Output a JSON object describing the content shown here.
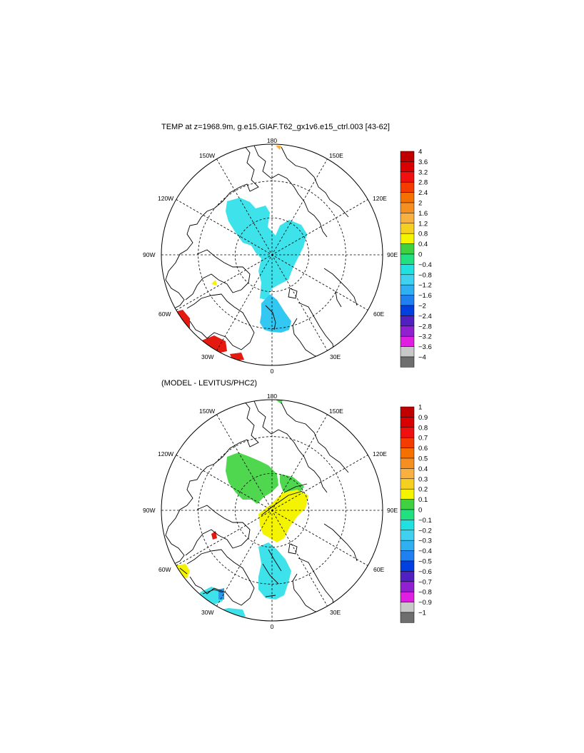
{
  "panels": [
    {
      "title": "TEMP at z=1968.9m, g.e15.GIAF.T62_gx1v6.e15_ctrl.003 [43-62]",
      "lon_labels": {
        "top": "180",
        "bottom": "0",
        "left": "90W",
        "right": "90E",
        "ul1": "150W",
        "ul2": "120W",
        "ur1": "150E",
        "ur2": "120E",
        "ll1": "60W",
        "ll2": "30W",
        "lr1": "60E",
        "lr2": "30E"
      },
      "colorbar": {
        "labels": [
          "4",
          "3.6",
          "3.2",
          "2.8",
          "2.4",
          "2",
          "1.6",
          "1.2",
          "0.8",
          "0.4",
          "0",
          "−0.4",
          "−0.8",
          "−1.2",
          "−1.6",
          "−2",
          "−2.4",
          "−2.8",
          "−3.2",
          "−3.6",
          "−4"
        ],
        "colors": [
          "#c00000",
          "#d80000",
          "#f01010",
          "#f43c00",
          "#f47000",
          "#f58f20",
          "#f8b040",
          "#f6d020",
          "#f4f400",
          "#40d040",
          "#20e080",
          "#20e0e0",
          "#40d0f0",
          "#30b0f0",
          "#2080f0",
          "#0040e0",
          "#5020c0",
          "#9020d0",
          "#e020e0",
          "#c8c8c8",
          "#6e6e6e"
        ]
      }
    },
    {
      "title": "(MODEL - LEVITUS/PHC2)",
      "lon_labels": {
        "top": "180",
        "bottom": "0",
        "left": "90W",
        "right": "90E",
        "ul1": "150W",
        "ul2": "120W",
        "ur1": "150E",
        "ur2": "120E",
        "ll1": "60W",
        "ll2": "30W",
        "lr1": "60E",
        "lr2": "30E"
      },
      "colorbar": {
        "labels": [
          "1",
          "0.9",
          "0.8",
          "0.7",
          "0.6",
          "0.5",
          "0.4",
          "0.3",
          "0.2",
          "0.1",
          "0",
          "−0.1",
          "−0.2",
          "−0.3",
          "−0.4",
          "−0.5",
          "−0.6",
          "−0.7",
          "−0.8",
          "−0.9",
          "−1"
        ],
        "colors": [
          "#c00000",
          "#d80000",
          "#f01010",
          "#f43c00",
          "#f47000",
          "#f58f20",
          "#f8b040",
          "#f6d020",
          "#f4f400",
          "#40d040",
          "#20e080",
          "#20e0e0",
          "#40d0f0",
          "#30b0f0",
          "#2080f0",
          "#0040e0",
          "#5020c0",
          "#9020d0",
          "#e020e0",
          "#c8c8c8",
          "#6e6e6e"
        ]
      }
    }
  ],
  "fields": {
    "cyan": "#3ee2ea",
    "light_blue": "#33c8f2",
    "red": "#e41a10",
    "yellow": "#f4f400",
    "green": "#4fd84f",
    "mid_blue": "#2a9ae8"
  }
}
